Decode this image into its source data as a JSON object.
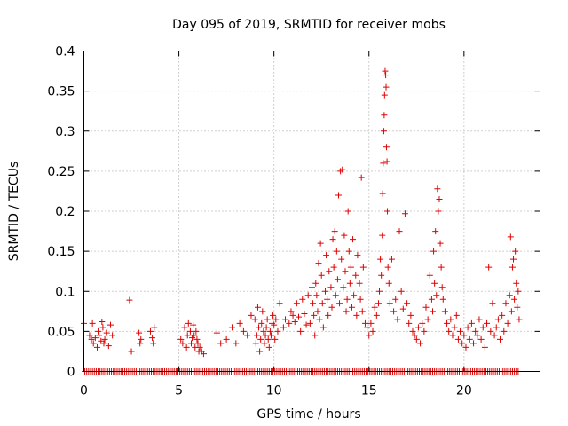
{
  "chart_data": {
    "type": "scatter",
    "title": "Day 095 of 2019, SRMTID for receiver mobs",
    "xlabel": "GPS time / hours",
    "ylabel": "SRMTID / TECUs",
    "xlim": [
      0,
      24
    ],
    "ylim": [
      0,
      0.4
    ],
    "xticks": [
      0,
      5,
      10,
      15,
      20
    ],
    "yticks": [
      0,
      0.05,
      0.1,
      0.15,
      0.2,
      0.25,
      0.3,
      0.35,
      0.4
    ],
    "xtick_labels": [
      "0",
      "5",
      "10",
      "15",
      "20"
    ],
    "ytick_labels": [
      "0",
      "0.05",
      "0.1",
      "0.15",
      "0.2",
      "0.25",
      "0.3",
      "0.35",
      "0.4"
    ],
    "grid": true,
    "marker": "+",
    "marker_color": "#e00000",
    "series": [
      {
        "name": "SRMTID",
        "points": [
          [
            0.0,
            0.06
          ],
          [
            0.3,
            0.045
          ],
          [
            0.4,
            0.04
          ],
          [
            0.45,
            0.06
          ],
          [
            0.5,
            0.035
          ],
          [
            0.6,
            0.042
          ],
          [
            0.7,
            0.03
          ],
          [
            0.75,
            0.05
          ],
          [
            0.8,
            0.045
          ],
          [
            0.9,
            0.038
          ],
          [
            0.95,
            0.062
          ],
          [
            1.0,
            0.055
          ],
          [
            1.05,
            0.035
          ],
          [
            1.1,
            0.04
          ],
          [
            1.2,
            0.048
          ],
          [
            1.3,
            0.032
          ],
          [
            1.4,
            0.058
          ],
          [
            1.5,
            0.045
          ],
          [
            2.4,
            0.089
          ],
          [
            2.5,
            0.025
          ],
          [
            2.9,
            0.048
          ],
          [
            2.95,
            0.035
          ],
          [
            3.0,
            0.04
          ],
          [
            3.5,
            0.05
          ],
          [
            3.6,
            0.042
          ],
          [
            3.65,
            0.035
          ],
          [
            3.7,
            0.055
          ],
          [
            5.1,
            0.04
          ],
          [
            5.2,
            0.035
          ],
          [
            5.3,
            0.055
          ],
          [
            5.4,
            0.03
          ],
          [
            5.45,
            0.045
          ],
          [
            5.5,
            0.06
          ],
          [
            5.6,
            0.05
          ],
          [
            5.65,
            0.035
          ],
          [
            5.7,
            0.042
          ],
          [
            5.75,
            0.058
          ],
          [
            5.8,
            0.045
          ],
          [
            5.85,
            0.03
          ],
          [
            5.9,
            0.05
          ],
          [
            5.95,
            0.04
          ],
          [
            6.0,
            0.035
          ],
          [
            6.05,
            0.025
          ],
          [
            6.1,
            0.03
          ],
          [
            6.2,
            0.025
          ],
          [
            6.3,
            0.022
          ],
          [
            7.0,
            0.048
          ],
          [
            7.2,
            0.035
          ],
          [
            7.5,
            0.04
          ],
          [
            7.8,
            0.055
          ],
          [
            8.0,
            0.035
          ],
          [
            8.2,
            0.06
          ],
          [
            8.4,
            0.05
          ],
          [
            8.6,
            0.045
          ],
          [
            8.8,
            0.07
          ],
          [
            9.0,
            0.065
          ],
          [
            9.05,
            0.035
          ],
          [
            9.1,
            0.045
          ],
          [
            9.15,
            0.08
          ],
          [
            9.2,
            0.055
          ],
          [
            9.25,
            0.025
          ],
          [
            9.3,
            0.04
          ],
          [
            9.35,
            0.06
          ],
          [
            9.4,
            0.075
          ],
          [
            9.45,
            0.05
          ],
          [
            9.5,
            0.035
          ],
          [
            9.55,
            0.045
          ],
          [
            9.6,
            0.055
          ],
          [
            9.65,
            0.065
          ],
          [
            9.7,
            0.04
          ],
          [
            9.75,
            0.03
          ],
          [
            9.8,
            0.05
          ],
          [
            9.85,
            0.045
          ],
          [
            9.9,
            0.06
          ],
          [
            9.95,
            0.07
          ],
          [
            10.0,
            0.058
          ],
          [
            10.05,
            0.04
          ],
          [
            10.1,
            0.065
          ],
          [
            10.2,
            0.05
          ],
          [
            10.3,
            0.085
          ],
          [
            10.5,
            0.055
          ],
          [
            10.6,
            0.065
          ],
          [
            10.8,
            0.06
          ],
          [
            10.9,
            0.075
          ],
          [
            11.0,
            0.07
          ],
          [
            11.1,
            0.062
          ],
          [
            11.2,
            0.085
          ],
          [
            11.3,
            0.068
          ],
          [
            11.4,
            0.05
          ],
          [
            11.5,
            0.09
          ],
          [
            11.6,
            0.072
          ],
          [
            11.7,
            0.058
          ],
          [
            11.8,
            0.095
          ],
          [
            11.9,
            0.06
          ],
          [
            12.0,
            0.105
          ],
          [
            12.05,
            0.085
          ],
          [
            12.1,
            0.07
          ],
          [
            12.15,
            0.045
          ],
          [
            12.2,
            0.11
          ],
          [
            12.25,
            0.095
          ],
          [
            12.3,
            0.075
          ],
          [
            12.35,
            0.135
          ],
          [
            12.4,
            0.065
          ],
          [
            12.45,
            0.16
          ],
          [
            12.5,
            0.12
          ],
          [
            12.55,
            0.085
          ],
          [
            12.6,
            0.055
          ],
          [
            12.7,
            0.1
          ],
          [
            12.75,
            0.145
          ],
          [
            12.8,
            0.09
          ],
          [
            12.85,
            0.07
          ],
          [
            12.9,
            0.125
          ],
          [
            13.0,
            0.105
          ],
          [
            13.05,
            0.08
          ],
          [
            13.1,
            0.165
          ],
          [
            13.15,
            0.13
          ],
          [
            13.2,
            0.175
          ],
          [
            13.25,
            0.095
          ],
          [
            13.3,
            0.15
          ],
          [
            13.35,
            0.115
          ],
          [
            13.4,
            0.22
          ],
          [
            13.45,
            0.085
          ],
          [
            13.5,
            0.25
          ],
          [
            13.55,
            0.14
          ],
          [
            13.6,
            0.252
          ],
          [
            13.65,
            0.105
          ],
          [
            13.7,
            0.17
          ],
          [
            13.75,
            0.125
          ],
          [
            13.8,
            0.075
          ],
          [
            13.85,
            0.09
          ],
          [
            13.9,
            0.2
          ],
          [
            13.95,
            0.15
          ],
          [
            14.0,
            0.11
          ],
          [
            14.05,
            0.13
          ],
          [
            14.1,
            0.08
          ],
          [
            14.15,
            0.165
          ],
          [
            14.2,
            0.095
          ],
          [
            14.3,
            0.12
          ],
          [
            14.35,
            0.07
          ],
          [
            14.4,
            0.145
          ],
          [
            14.5,
            0.11
          ],
          [
            14.55,
            0.09
          ],
          [
            14.6,
            0.242
          ],
          [
            14.65,
            0.075
          ],
          [
            14.7,
            0.13
          ],
          [
            14.8,
            0.06
          ],
          [
            14.9,
            0.055
          ],
          [
            15.0,
            0.045
          ],
          [
            15.1,
            0.06
          ],
          [
            15.2,
            0.05
          ],
          [
            15.3,
            0.08
          ],
          [
            15.4,
            0.07
          ],
          [
            15.5,
            0.085
          ],
          [
            15.55,
            0.1
          ],
          [
            15.6,
            0.14
          ],
          [
            15.65,
            0.12
          ],
          [
            15.7,
            0.17
          ],
          [
            15.72,
            0.222
          ],
          [
            15.75,
            0.26
          ],
          [
            15.78,
            0.3
          ],
          [
            15.8,
            0.32
          ],
          [
            15.82,
            0.345
          ],
          [
            15.85,
            0.375
          ],
          [
            15.88,
            0.37
          ],
          [
            15.9,
            0.355
          ],
          [
            15.92,
            0.28
          ],
          [
            15.95,
            0.262
          ],
          [
            15.97,
            0.2
          ],
          [
            16.0,
            0.13
          ],
          [
            16.05,
            0.11
          ],
          [
            16.1,
            0.085
          ],
          [
            16.2,
            0.14
          ],
          [
            16.3,
            0.075
          ],
          [
            16.4,
            0.09
          ],
          [
            16.5,
            0.065
          ],
          [
            16.6,
            0.175
          ],
          [
            16.7,
            0.1
          ],
          [
            16.8,
            0.078
          ],
          [
            16.9,
            0.197
          ],
          [
            17.0,
            0.085
          ],
          [
            17.1,
            0.06
          ],
          [
            17.2,
            0.07
          ],
          [
            17.3,
            0.05
          ],
          [
            17.4,
            0.045
          ],
          [
            17.5,
            0.04
          ],
          [
            17.6,
            0.055
          ],
          [
            17.7,
            0.035
          ],
          [
            17.8,
            0.06
          ],
          [
            17.9,
            0.05
          ],
          [
            18.0,
            0.08
          ],
          [
            18.1,
            0.065
          ],
          [
            18.2,
            0.12
          ],
          [
            18.3,
            0.09
          ],
          [
            18.35,
            0.075
          ],
          [
            18.4,
            0.15
          ],
          [
            18.45,
            0.11
          ],
          [
            18.5,
            0.175
          ],
          [
            18.55,
            0.095
          ],
          [
            18.6,
            0.228
          ],
          [
            18.65,
            0.2
          ],
          [
            18.7,
            0.215
          ],
          [
            18.75,
            0.16
          ],
          [
            18.8,
            0.13
          ],
          [
            18.85,
            0.105
          ],
          [
            18.9,
            0.09
          ],
          [
            19.0,
            0.075
          ],
          [
            19.1,
            0.06
          ],
          [
            19.2,
            0.05
          ],
          [
            19.3,
            0.065
          ],
          [
            19.4,
            0.045
          ],
          [
            19.5,
            0.055
          ],
          [
            19.6,
            0.07
          ],
          [
            19.7,
            0.04
          ],
          [
            19.8,
            0.05
          ],
          [
            19.9,
            0.035
          ],
          [
            20.0,
            0.045
          ],
          [
            20.1,
            0.03
          ],
          [
            20.2,
            0.055
          ],
          [
            20.3,
            0.04
          ],
          [
            20.4,
            0.06
          ],
          [
            20.5,
            0.035
          ],
          [
            20.6,
            0.05
          ],
          [
            20.7,
            0.045
          ],
          [
            20.8,
            0.065
          ],
          [
            20.9,
            0.04
          ],
          [
            21.0,
            0.055
          ],
          [
            21.1,
            0.03
          ],
          [
            21.2,
            0.06
          ],
          [
            21.3,
            0.13
          ],
          [
            21.4,
            0.05
          ],
          [
            21.5,
            0.085
          ],
          [
            21.6,
            0.045
          ],
          [
            21.7,
            0.055
          ],
          [
            21.8,
            0.065
          ],
          [
            21.9,
            0.04
          ],
          [
            22.0,
            0.07
          ],
          [
            22.1,
            0.05
          ],
          [
            22.2,
            0.085
          ],
          [
            22.3,
            0.06
          ],
          [
            22.4,
            0.095
          ],
          [
            22.45,
            0.168
          ],
          [
            22.5,
            0.075
          ],
          [
            22.55,
            0.13
          ],
          [
            22.6,
            0.14
          ],
          [
            22.65,
            0.09
          ],
          [
            22.7,
            0.15
          ],
          [
            22.75,
            0.11
          ],
          [
            22.8,
            0.08
          ],
          [
            22.85,
            0.1
          ],
          [
            22.9,
            0.065
          ]
        ]
      },
      {
        "name": "baseline",
        "x_start": 0.05,
        "x_end": 22.9,
        "x_step": 0.1,
        "y": 0
      }
    ]
  }
}
